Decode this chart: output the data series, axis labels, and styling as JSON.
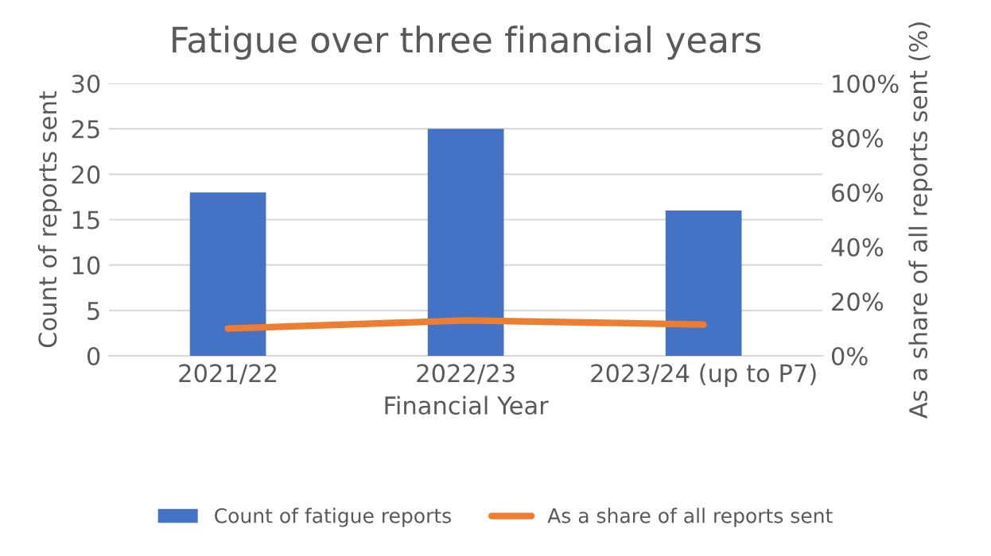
{
  "chart_data": {
    "type": "bar",
    "title": "Fatigue over three financial years",
    "xlabel": "Financial Year",
    "ylabel": "Count of reports sent",
    "y2label": "As a share of all reports sent (%)",
    "categories": [
      "2021/22",
      "2022/23",
      "2023/24 (up to P7)"
    ],
    "series": [
      {
        "name": "Count of fatigue reports",
        "color": "#4472c4",
        "values": [
          18,
          25,
          16
        ]
      },
      {
        "name": "As a share of all reports sent",
        "type": "line",
        "axis": "y2",
        "color": "#ed7d31",
        "values": [
          10,
          13,
          11.5
        ]
      }
    ],
    "ylim": [
      0,
      30
    ],
    "yticks": [
      0,
      5,
      10,
      15,
      20,
      25,
      30
    ],
    "y2lim": [
      0,
      100
    ],
    "y2ticks": [
      {
        "value": 0,
        "label": "0%"
      },
      {
        "value": 20,
        "label": "20%"
      },
      {
        "value": 40,
        "label": "40%"
      },
      {
        "value": 60,
        "label": "60%"
      },
      {
        "value": 80,
        "label": "80%"
      },
      {
        "value": 100,
        "label": "100%"
      }
    ],
    "grid": "y",
    "legend": "bottom",
    "marker": "none",
    "line_style": "solid"
  }
}
